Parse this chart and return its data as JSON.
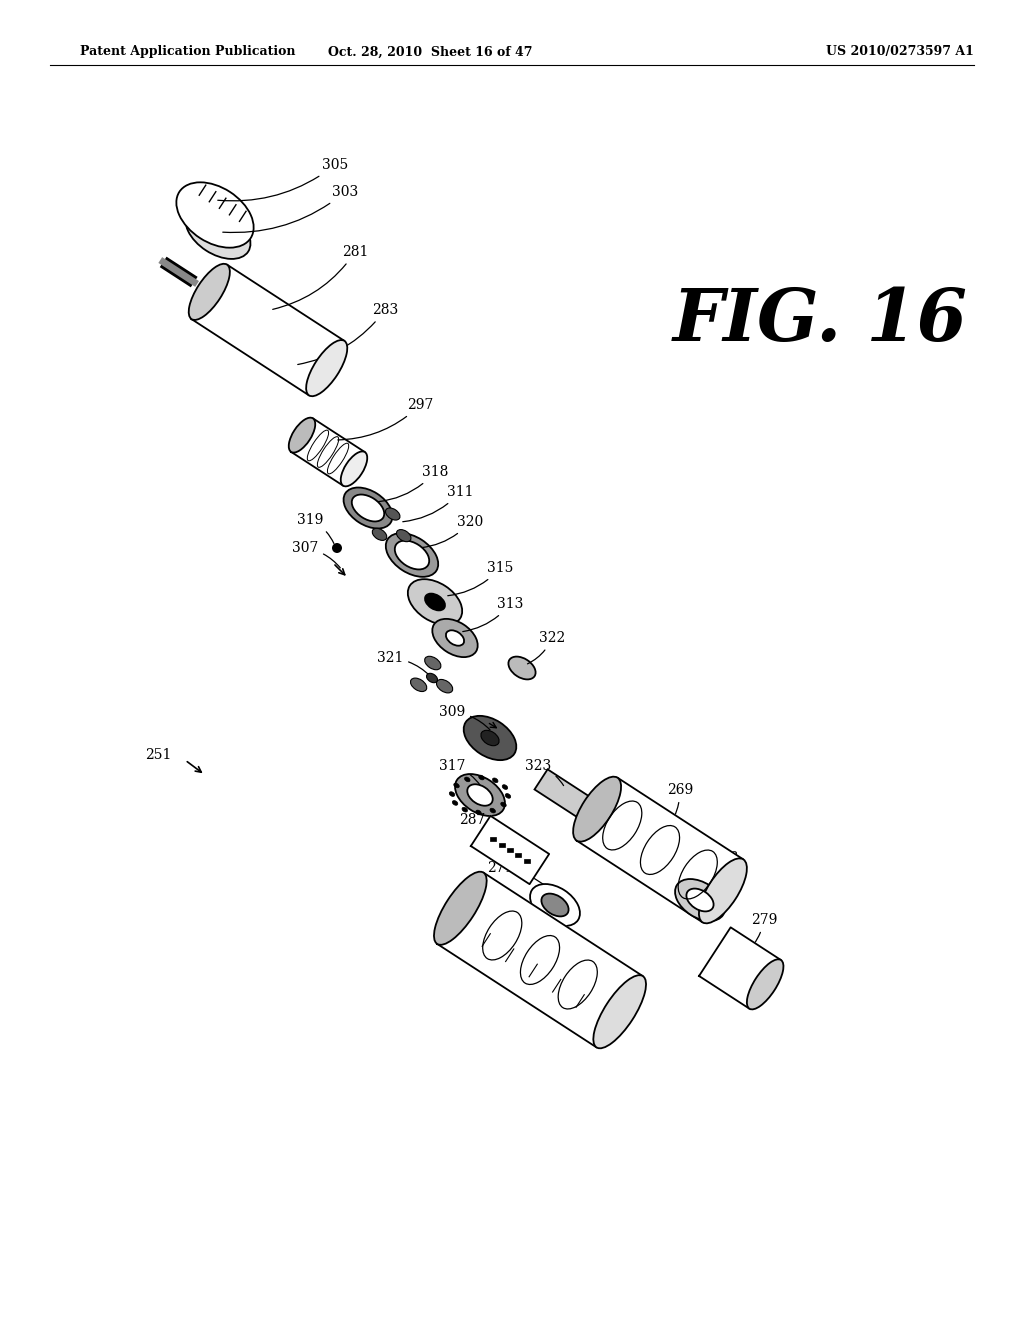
{
  "background_color": "#ffffff",
  "header_left": "Patent Application Publication",
  "header_mid": "Oct. 28, 2010  Sheet 16 of 47",
  "header_right": "US 2010/0273597 A1",
  "fig_label": "FIG. 16",
  "ref_num_251": "251"
}
